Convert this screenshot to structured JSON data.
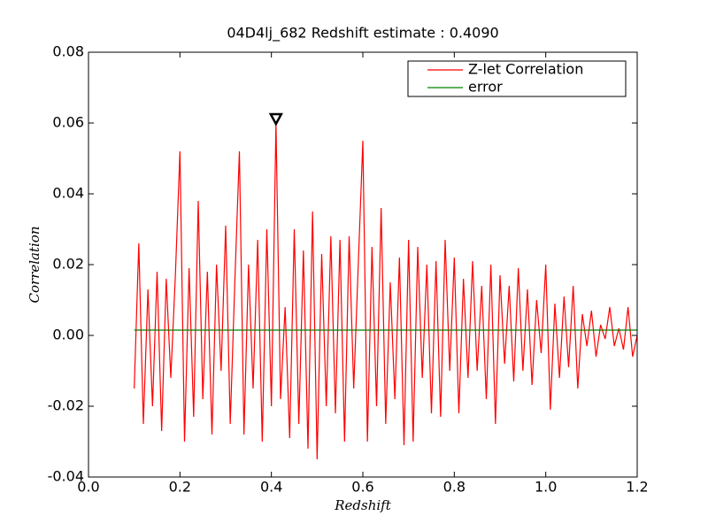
{
  "chart_data": {
    "type": "line",
    "title": "04D4lj_682 Redshift estimate : 0.4090",
    "xlabel": "Redshift",
    "ylabel": "Correlation",
    "xlim": [
      0.0,
      1.2
    ],
    "ylim": [
      -0.04,
      0.08
    ],
    "xticks": [
      {
        "value": 0.0,
        "label": "0.0"
      },
      0.2,
      0.4,
      0.6,
      0.8,
      {
        "value": 1.0,
        "label": "1.0"
      },
      1.2
    ],
    "yticks": [
      {
        "value": -0.04,
        "label": "-0.04"
      },
      {
        "value": -0.02,
        "label": "-0.02"
      },
      {
        "value": 0.0,
        "label": "0.00"
      },
      0.02,
      {
        "value": 0.04,
        "label": "0.04"
      },
      0.06,
      0.08
    ],
    "legend": "upper right",
    "series": [
      {
        "name": "Z-let Correlation",
        "color": "#ff0000",
        "x": [
          0.1,
          0.11,
          0.12,
          0.13,
          0.14,
          0.15,
          0.16,
          0.17,
          0.18,
          0.19,
          0.2,
          0.21,
          0.22,
          0.23,
          0.24,
          0.25,
          0.26,
          0.27,
          0.28,
          0.29,
          0.3,
          0.31,
          0.32,
          0.33,
          0.34,
          0.35,
          0.36,
          0.37,
          0.38,
          0.39,
          0.4,
          0.41,
          0.42,
          0.43,
          0.44,
          0.45,
          0.46,
          0.47,
          0.48,
          0.49,
          0.5,
          0.51,
          0.52,
          0.53,
          0.54,
          0.55,
          0.56,
          0.57,
          0.58,
          0.59,
          0.6,
          0.61,
          0.62,
          0.63,
          0.64,
          0.65,
          0.66,
          0.67,
          0.68,
          0.69,
          0.7,
          0.71,
          0.72,
          0.73,
          0.74,
          0.75,
          0.76,
          0.77,
          0.78,
          0.79,
          0.8,
          0.81,
          0.82,
          0.83,
          0.84,
          0.85,
          0.86,
          0.87,
          0.88,
          0.89,
          0.9,
          0.91,
          0.92,
          0.93,
          0.94,
          0.95,
          0.96,
          0.97,
          0.98,
          0.99,
          1.0,
          1.01,
          1.02,
          1.03,
          1.04,
          1.05,
          1.06,
          1.07,
          1.08,
          1.09,
          1.1,
          1.11,
          1.12,
          1.13,
          1.14,
          1.15,
          1.16,
          1.17,
          1.18,
          1.19,
          1.2
        ],
        "values": [
          -0.015,
          0.026,
          -0.025,
          0.013,
          -0.02,
          0.018,
          -0.027,
          0.016,
          -0.012,
          0.017,
          0.052,
          -0.03,
          0.019,
          -0.023,
          0.038,
          -0.018,
          0.018,
          -0.028,
          0.02,
          -0.01,
          0.031,
          -0.025,
          0.015,
          0.052,
          -0.028,
          0.02,
          -0.015,
          0.027,
          -0.03,
          0.03,
          -0.02,
          0.06,
          -0.018,
          0.008,
          -0.029,
          0.03,
          -0.025,
          0.024,
          -0.032,
          0.035,
          -0.035,
          0.023,
          -0.02,
          0.028,
          -0.022,
          0.027,
          -0.03,
          0.028,
          -0.015,
          0.02,
          0.055,
          -0.03,
          0.025,
          -0.02,
          0.036,
          -0.025,
          0.015,
          -0.018,
          0.022,
          -0.031,
          0.027,
          -0.03,
          0.025,
          -0.012,
          0.02,
          -0.022,
          0.021,
          -0.023,
          0.027,
          -0.01,
          0.022,
          -0.022,
          0.016,
          -0.012,
          0.021,
          -0.01,
          0.014,
          -0.018,
          0.02,
          -0.025,
          0.017,
          -0.008,
          0.014,
          -0.013,
          0.019,
          -0.01,
          0.013,
          -0.014,
          0.01,
          -0.005,
          0.02,
          -0.021,
          0.009,
          -0.012,
          0.011,
          -0.009,
          0.014,
          -0.015,
          0.006,
          -0.003,
          0.007,
          -0.006,
          0.003,
          -0.001,
          0.008,
          -0.003,
          0.002,
          -0.004,
          0.008,
          -0.006,
          0.0
        ]
      },
      {
        "name": "error",
        "color": "#008000",
        "x": [
          0.1,
          1.2
        ],
        "values": [
          0.0015,
          0.0015
        ]
      }
    ],
    "marker": {
      "x": 0.41,
      "y": 0.061,
      "color": "#000000"
    }
  }
}
